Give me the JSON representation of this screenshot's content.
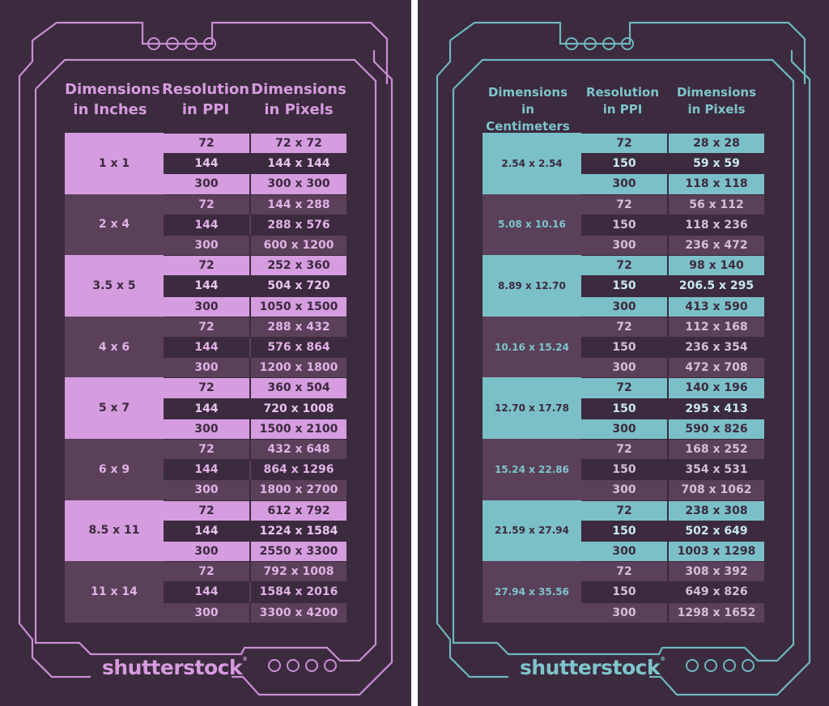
{
  "colors": {
    "background": "#3c2a3e",
    "pink": "#d59de0",
    "teal": "#7bc0c8",
    "dark_row": "#5a4059"
  },
  "left": {
    "headers": [
      "Dimensions in Inches",
      "Resolution in PPI",
      "Dimensions in Pixels"
    ],
    "headers_lines": [
      [
        "Dimensions",
        "in Inches"
      ],
      [
        "Resolution",
        "in PPI"
      ],
      [
        "Dimensions",
        "in Pixels"
      ]
    ],
    "groups": [
      {
        "dim": "1 x 1",
        "rows": [
          [
            "72",
            "72 x 72"
          ],
          [
            "144",
            "144 x 144"
          ],
          [
            "300",
            "300 x 300"
          ]
        ]
      },
      {
        "dim": "2 x 4",
        "rows": [
          [
            "72",
            "144 x 288"
          ],
          [
            "144",
            "288 x 576"
          ],
          [
            "300",
            "600 x 1200"
          ]
        ]
      },
      {
        "dim": "3.5 x 5",
        "rows": [
          [
            "72",
            "252 x 360"
          ],
          [
            "144",
            "504 x 720"
          ],
          [
            "300",
            "1050 x 1500"
          ]
        ]
      },
      {
        "dim": "4 x 6",
        "rows": [
          [
            "72",
            "288 x 432"
          ],
          [
            "144",
            "576 x 864"
          ],
          [
            "300",
            "1200 x 1800"
          ]
        ]
      },
      {
        "dim": "5 x 7",
        "rows": [
          [
            "72",
            "360 x 504"
          ],
          [
            "144",
            "720 x 1008"
          ],
          [
            "300",
            "1500 x 2100"
          ]
        ]
      },
      {
        "dim": "6 x 9",
        "rows": [
          [
            "72",
            "432 x 648"
          ],
          [
            "144",
            "864 x 1296"
          ],
          [
            "300",
            "1800 x 2700"
          ]
        ]
      },
      {
        "dim": "8.5 x 11",
        "rows": [
          [
            "72",
            "612 x 792"
          ],
          [
            "144",
            "1224 x 1584"
          ],
          [
            "300",
            "2550 x 3300"
          ]
        ]
      },
      {
        "dim": "11 x 14",
        "rows": [
          [
            "72",
            "792 x 1008"
          ],
          [
            "144",
            "1584 x 2016"
          ],
          [
            "300",
            "3300 x 4200"
          ]
        ]
      }
    ],
    "logo": "shutterstock"
  },
  "right": {
    "headers_lines": [
      [
        "Dimensions in",
        "Centimeters"
      ],
      [
        "Resolution",
        "in PPI"
      ],
      [
        "Dimensions",
        "in Pixels"
      ]
    ],
    "groups": [
      {
        "dim": "2.54 x 2.54",
        "rows": [
          [
            "72",
            "28 x 28"
          ],
          [
            "150",
            "59 x 59"
          ],
          [
            "300",
            "118 x 118"
          ]
        ]
      },
      {
        "dim": "5.08 x 10.16",
        "rows": [
          [
            "72",
            "56 x 112"
          ],
          [
            "150",
            "118 x 236"
          ],
          [
            "300",
            "236 x 472"
          ]
        ]
      },
      {
        "dim": "8.89 x 12.70",
        "rows": [
          [
            "72",
            "98 x 140"
          ],
          [
            "150",
            "206.5 x 295"
          ],
          [
            "300",
            "413 x 590"
          ]
        ]
      },
      {
        "dim": "10.16 x 15.24",
        "rows": [
          [
            "72",
            "112 x 168"
          ],
          [
            "150",
            "236 x 354"
          ],
          [
            "300",
            "472 x 708"
          ]
        ]
      },
      {
        "dim": "12.70 x 17.78",
        "rows": [
          [
            "72",
            "140 x 196"
          ],
          [
            "150",
            "295 x 413"
          ],
          [
            "300",
            "590 x 826"
          ]
        ]
      },
      {
        "dim": "15.24 x 22.86",
        "rows": [
          [
            "72",
            "168 x 252"
          ],
          [
            "150",
            "354 x 531"
          ],
          [
            "300",
            "708 x 1062"
          ]
        ]
      },
      {
        "dim": "21.59 x 27.94",
        "rows": [
          [
            "72",
            "238 x 308"
          ],
          [
            "150",
            "502 x 649"
          ],
          [
            "300",
            "1003 x 1298"
          ]
        ]
      },
      {
        "dim": "27.94 x 35.56",
        "rows": [
          [
            "72",
            "308 x 392"
          ],
          [
            "150",
            "649 x 826"
          ],
          [
            "300",
            "1298 x 1652"
          ]
        ]
      }
    ],
    "logo": "shutterstock"
  }
}
